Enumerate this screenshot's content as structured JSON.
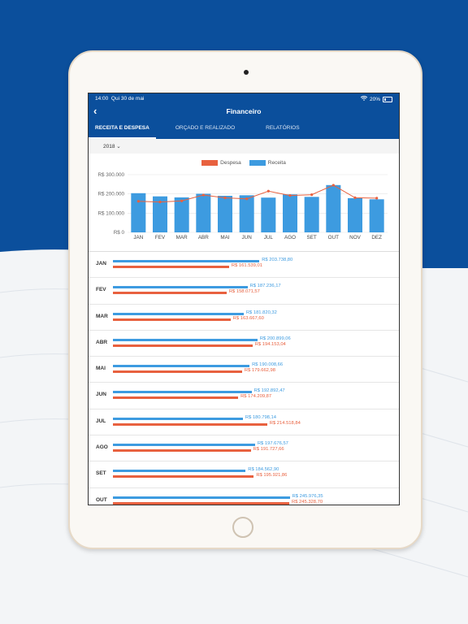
{
  "status": {
    "time": "14:00",
    "date": "Qui 30 de mai",
    "battery": "20%"
  },
  "header": {
    "title": "Financeiro",
    "back": "‹"
  },
  "tabs": [
    {
      "label": "RECEITA E DESPESA",
      "active": true
    },
    {
      "label": "ORÇADO E REALIZADO",
      "active": false
    },
    {
      "label": "RELATÓRIOS",
      "active": false
    }
  ],
  "year_select": "2018 ⌄",
  "colors": {
    "receita": "#3d9be0",
    "despesa": "#e8613f",
    "brand": "#0b4f9c"
  },
  "chart_data": {
    "type": "bar",
    "legend": [
      "Despesa",
      "Receita"
    ],
    "categories": [
      "JAN",
      "FEV",
      "MAR",
      "ABR",
      "MAI",
      "JUN",
      "JUL",
      "AGO",
      "SET",
      "OUT",
      "NOV",
      "DEZ"
    ],
    "yticks": [
      "R$ 300.000",
      "R$ 200.000",
      "R$ 100.000",
      "R$ 0"
    ],
    "ylim": [
      0,
      300000
    ],
    "series": [
      {
        "name": "Receita",
        "type": "bar",
        "values": [
          203738.8,
          187236.17,
          181820.32,
          200899.06,
          190008.66,
          192892.47,
          180798.14,
          197676.57,
          184562.9,
          245976.35,
          178000,
          172000
        ]
      },
      {
        "name": "Despesa",
        "type": "line",
        "values": [
          161539.01,
          158071.57,
          163667.6,
          194153.04,
          179662.98,
          174209.87,
          214518.84,
          191727.66,
          195921.86,
          245328.7,
          180000,
          178000
        ]
      }
    ]
  },
  "rows": [
    {
      "month": "JAN",
      "receita": 203738.8,
      "despesa": 161539.01,
      "receita_label": "R$ 203.738,80",
      "despesa_label": "R$ 161.539,01"
    },
    {
      "month": "FEV",
      "receita": 187236.17,
      "despesa": 158071.57,
      "receita_label": "R$ 187.236,17",
      "despesa_label": "R$ 158.071,57"
    },
    {
      "month": "MAR",
      "receita": 181820.32,
      "despesa": 163667.6,
      "receita_label": "R$ 181.820,32",
      "despesa_label": "R$ 163.667,60"
    },
    {
      "month": "ABR",
      "receita": 200899.06,
      "despesa": 194153.04,
      "receita_label": "R$ 200.899,06",
      "despesa_label": "R$ 194.153,04"
    },
    {
      "month": "MAI",
      "receita": 190008.66,
      "despesa": 179662.98,
      "receita_label": "R$ 190.008,66",
      "despesa_label": "R$ 179.662,98"
    },
    {
      "month": "JUN",
      "receita": 192892.47,
      "despesa": 174209.87,
      "receita_label": "R$ 192.892,47",
      "despesa_label": "R$ 174.209,87"
    },
    {
      "month": "JUL",
      "receita": 180798.14,
      "despesa": 214518.84,
      "receita_label": "R$ 180.798,14",
      "despesa_label": "R$ 214.518,84"
    },
    {
      "month": "AGO",
      "receita": 197676.57,
      "despesa": 191727.66,
      "receita_label": "R$ 197.676,57",
      "despesa_label": "R$ 191.727,66"
    },
    {
      "month": "SET",
      "receita": 184562.9,
      "despesa": 195921.86,
      "receita_label": "R$ 184.562,90",
      "despesa_label": "R$ 195.921,86"
    },
    {
      "month": "OUT",
      "receita": 245976.35,
      "despesa": 245328.7,
      "receita_label": "R$ 245.976,35",
      "despesa_label": "R$ 245.328,70"
    }
  ]
}
